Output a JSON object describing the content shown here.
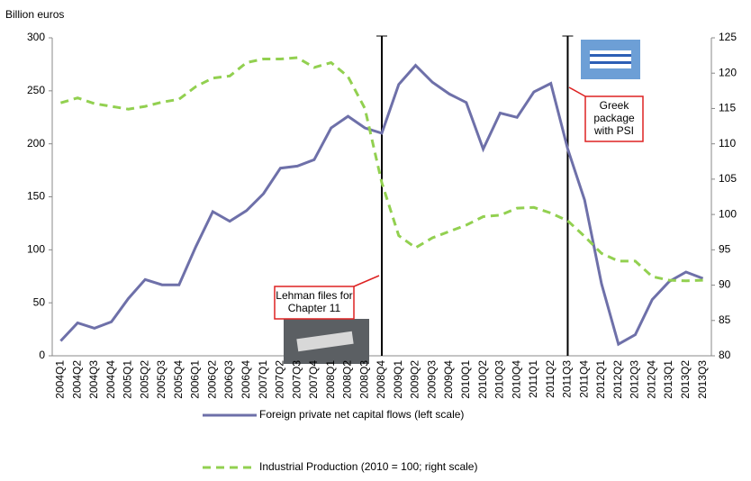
{
  "chart_data": {
    "type": "line",
    "y_label": "Billion euros",
    "categories": [
      "2004Q1",
      "2004Q2",
      "2004Q3",
      "2004Q4",
      "2005Q1",
      "2005Q2",
      "2005Q3",
      "2005Q4",
      "2006Q1",
      "2006Q2",
      "2006Q3",
      "2006Q4",
      "2007Q1",
      "2007Q2",
      "2007Q3",
      "2007Q4",
      "2008Q1",
      "2008Q2",
      "2008Q3",
      "2008Q4",
      "2009Q1",
      "2009Q2",
      "2009Q3",
      "2009Q4",
      "2010Q1",
      "2010Q2",
      "2010Q3",
      "2010Q4",
      "2011Q1",
      "2011Q2",
      "2011Q3",
      "2011Q4",
      "2012Q1",
      "2012Q2",
      "2012Q3",
      "2012Q4",
      "2013Q1",
      "2013Q2",
      "2013Q3"
    ],
    "series": [
      {
        "name": "Foreign private net capital flows (left scale)",
        "color": "#6e70a9",
        "dashed": false,
        "axis": "y",
        "values": [
          14,
          31,
          26,
          32,
          54,
          72,
          67,
          67,
          103,
          136,
          127,
          137,
          153,
          177,
          179,
          185,
          215,
          226,
          215,
          210,
          256,
          274,
          258,
          247,
          239,
          195,
          229,
          225,
          249,
          257,
          195,
          147,
          68,
          11,
          20,
          53,
          70,
          79,
          73
        ]
      },
      {
        "name": "Industrial Production (2010 = 100; right scale)",
        "color": "#92d050",
        "dashed": true,
        "axis": "y2",
        "values": [
          115.8,
          116.5,
          115.7,
          115.3,
          114.9,
          115.3,
          115.9,
          116.3,
          118.1,
          119.3,
          119.6,
          121.5,
          122,
          122,
          122.2,
          120.8,
          121.5,
          119.5,
          115,
          104.5,
          97,
          95.3,
          96.7,
          97.6,
          98.5,
          99.7,
          99.9,
          100.9,
          101,
          100.2,
          99.1,
          96.9,
          94.5,
          93.4,
          93.4,
          91.2,
          90.7,
          90.6,
          90.7
        ]
      }
    ],
    "ylim": [
      0,
      300
    ],
    "yticks": [
      0,
      50,
      100,
      150,
      200,
      250,
      300
    ],
    "y2lim": [
      80,
      125
    ],
    "y2ticks": [
      80,
      85,
      90,
      95,
      100,
      105,
      110,
      115,
      120,
      125
    ],
    "annotations": [
      {
        "category": "2008Q4",
        "lines": [
          "Lehman files for",
          "Chapter 11"
        ]
      },
      {
        "category": "2011Q3",
        "lines": [
          "Greek",
          "package",
          "with PSI"
        ]
      }
    ]
  }
}
